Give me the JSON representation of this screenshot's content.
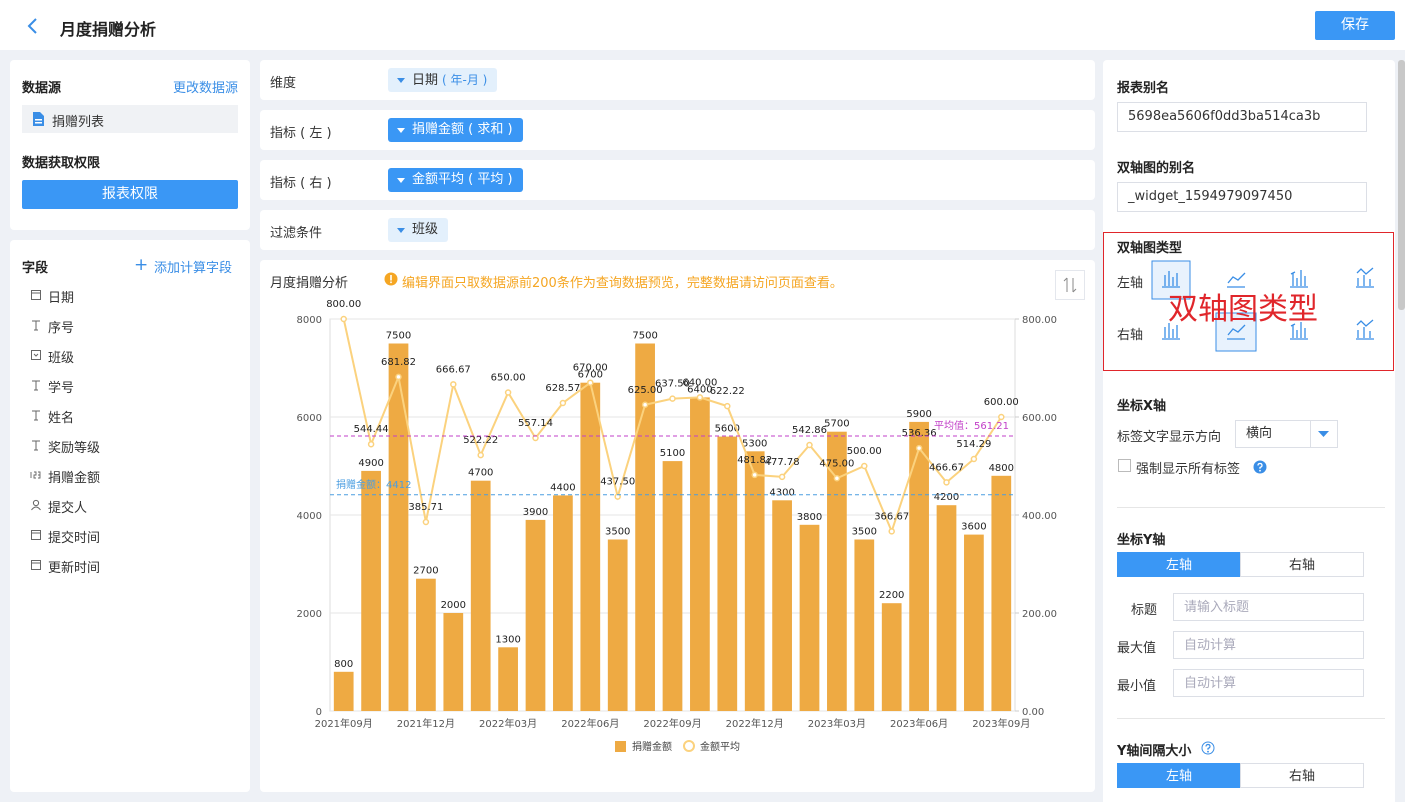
{
  "header": {
    "title": "月度捐赠分析",
    "save": "保存"
  },
  "data_source": {
    "label": "数据源",
    "change": "更改数据源",
    "table": "捐赠列表",
    "permission_label": "数据获取权限",
    "permission_button": "报表权限"
  },
  "fields": {
    "label": "字段",
    "add": "添加计算字段",
    "items": [
      "日期",
      "序号",
      "班级",
      "学号",
      "姓名",
      "奖励等级",
      "捐赠金额",
      "提交人",
      "提交时间",
      "更新时间"
    ]
  },
  "config": {
    "rows": [
      {
        "label": "维度",
        "chip": "日期",
        "chip_note": "( 年-月 )"
      },
      {
        "label": "指标 ( 左 )",
        "chip": "捐赠金额 ( 求和 )"
      },
      {
        "label": "指标 ( 右 )",
        "chip": "金额平均 ( 平均 )"
      },
      {
        "label": "过滤条件",
        "chip": "班级"
      }
    ]
  },
  "notice": "编辑界面只取数据源前200条作为查询数据预览，完整数据请访问页面查看。",
  "chart_data": {
    "type": "combo",
    "title": "月度捐赠分析",
    "categories": [
      "2021年09月",
      null,
      null,
      "2021年12月",
      null,
      null,
      "2022年03月",
      null,
      null,
      "2022年06月",
      null,
      null,
      "2022年09月",
      null,
      null,
      "2022年12月",
      null,
      null,
      "2023年03月",
      null,
      null,
      "2023年06月",
      null,
      null,
      "2023年09月"
    ],
    "series": [
      {
        "name": "捐赠金额",
        "type": "bar",
        "color": "#eeaa43",
        "values": [
          800,
          4900,
          7500,
          2700,
          2000,
          4700,
          1300,
          3900,
          4400,
          6700,
          3500,
          7500,
          5100,
          6400,
          5600,
          5300,
          4300,
          3800,
          5700,
          3500,
          2200,
          5900,
          4200,
          3600,
          4800
        ]
      },
      {
        "name": "金额平均",
        "type": "line",
        "axis": "y2",
        "color": "#fbd27e",
        "values": [
          800,
          544.44,
          681.82,
          385.71,
          666.67,
          522.22,
          650,
          557.14,
          628.57,
          670,
          437.5,
          625,
          637.5,
          640,
          622.22,
          481.82,
          477.78,
          542.86,
          475,
          500,
          366.67,
          536.36,
          466.67,
          514.29,
          600
        ],
        "value_labels": [
          "800.00",
          "544.44",
          "681.82",
          "385.71",
          "666.67",
          "522.22",
          "650.00",
          "557.14",
          "628.57",
          "670.00",
          "437.50",
          "625.00",
          "637.50",
          "640.00",
          "622.22",
          "481.82",
          "477.78",
          "542.86",
          "475.00",
          "500.00",
          "366.67",
          "536.36",
          "466.67",
          "514.29",
          "600.00"
        ]
      }
    ],
    "ylim": [
      0,
      8000
    ],
    "yticks": [
      0,
      2000,
      4000,
      6000,
      8000
    ],
    "y2lim": [
      0,
      800
    ],
    "y2ticks": [
      {
        "value": 0,
        "label": "0.00"
      },
      {
        "value": 200,
        "label": "200.00"
      },
      {
        "value": 400,
        "label": "400.00"
      },
      {
        "value": 600,
        "label": "600.00"
      },
      {
        "value": 800,
        "label": "800.00"
      }
    ],
    "grid": true,
    "legend": "bottom",
    "annotations": [
      {
        "label": "捐赠金额：4412",
        "value": 4412,
        "color": "#4a9de0"
      },
      {
        "label": "平均值：561.21",
        "value": 561.21,
        "axis": "y2",
        "color": "#c23fc8"
      }
    ]
  },
  "settings": {
    "report_alias_label": "报表别名",
    "report_alias": "5698ea5606f0dd3ba514ca3b",
    "widget_alias_label": "双轴图的别名",
    "widget_alias": "_widget_1594979097450",
    "chart_type_label": "双轴图类型",
    "left_axis": "左轴",
    "right_axis": "右轴",
    "annotation": "双轴图类型",
    "x_axis_label": "坐标X轴",
    "label_direction_label": "标签文字显示方向",
    "label_direction": "横向",
    "show_all_labels": "强制显示所有标签",
    "y_axis_label": "坐标Y轴",
    "y_tabs": [
      "左轴",
      "右轴"
    ],
    "title_label": "标题",
    "title_placeholder": "请输入标题",
    "max_label": "最大值",
    "max_placeholder": "自动计算",
    "min_label": "最小值",
    "min_placeholder": "自动计算",
    "y_interval_label": "Y轴间隔大小",
    "interval_tabs": [
      "左轴",
      "右轴"
    ]
  }
}
